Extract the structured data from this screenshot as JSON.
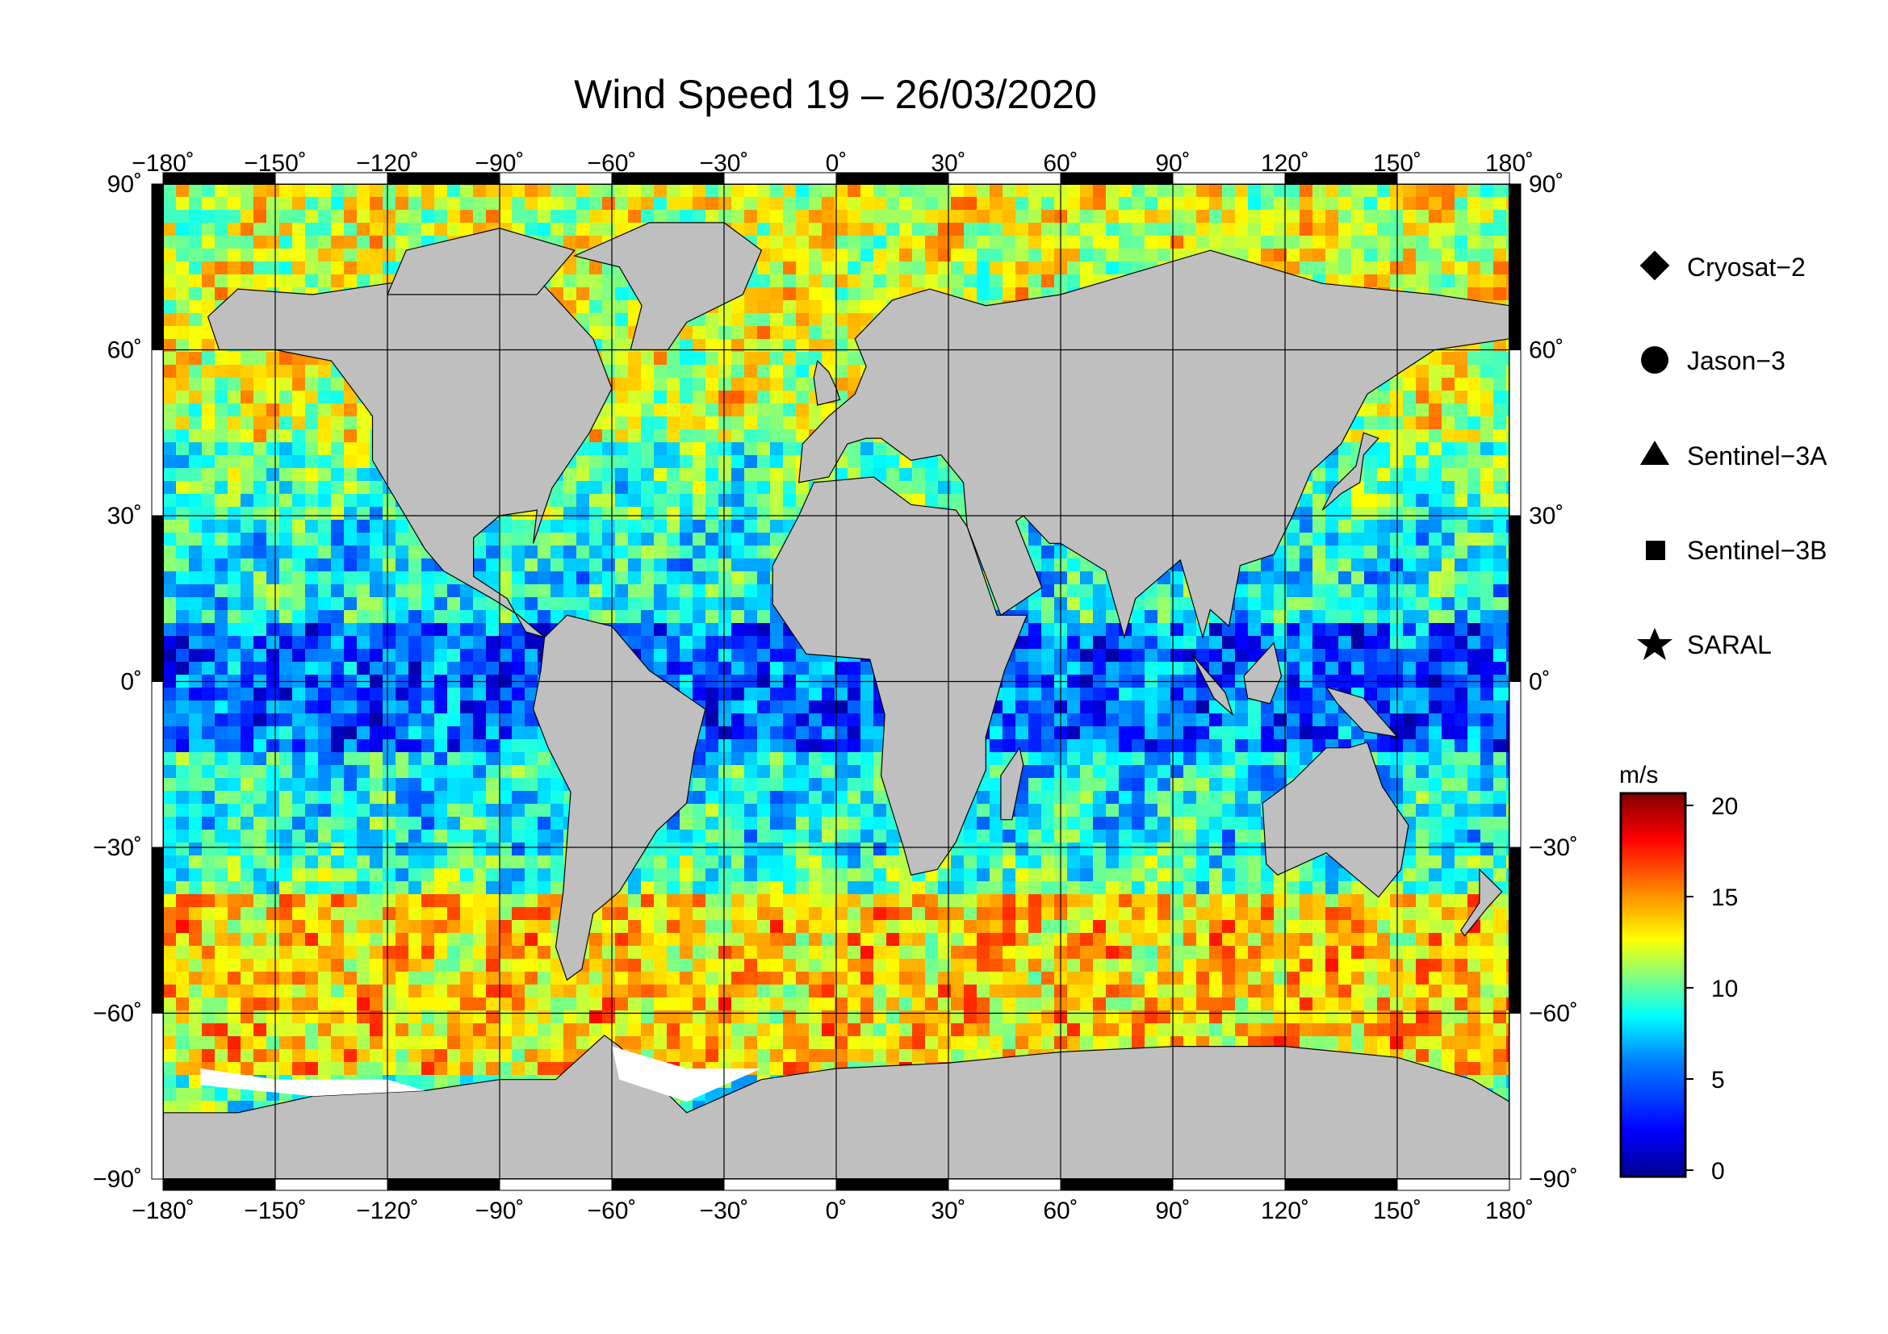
{
  "title": "Wind Speed 19 – 26/03/2020",
  "axes": {
    "lon_ticks": [
      "−180˚",
      "−150˚",
      "−120˚",
      "−90˚",
      "−60˚",
      "−30˚",
      "0˚",
      "30˚",
      "60˚",
      "90˚",
      "120˚",
      "150˚",
      "180˚"
    ],
    "lat_ticks": [
      "90˚",
      "60˚",
      "30˚",
      "0˚",
      "−30˚",
      "−60˚",
      "−90˚"
    ],
    "lon_range": [
      -180,
      180
    ],
    "lat_range": [
      -90,
      90
    ],
    "grid": true
  },
  "legend": {
    "items": [
      {
        "label": "Cryosat−2",
        "symbol": "diamond"
      },
      {
        "label": "Jason−3",
        "symbol": "circle"
      },
      {
        "label": "Sentinel−3A",
        "symbol": "triangle"
      },
      {
        "label": "Sentinel−3B",
        "symbol": "square"
      },
      {
        "label": "SARAL",
        "symbol": "star"
      }
    ]
  },
  "colorbar": {
    "unit": "m/s",
    "ticks": [
      "20",
      "15",
      "10",
      "5",
      "0"
    ],
    "range": [
      0,
      20
    ],
    "colors": [
      "#00008f",
      "#0000ff",
      "#0080ff",
      "#00ffff",
      "#80ff80",
      "#ffff00",
      "#ff8000",
      "#ff0000",
      "#800000"
    ]
  },
  "colors": {
    "land": "#bfbfbf",
    "ice": "#ffffff",
    "frame": "#000000"
  }
}
